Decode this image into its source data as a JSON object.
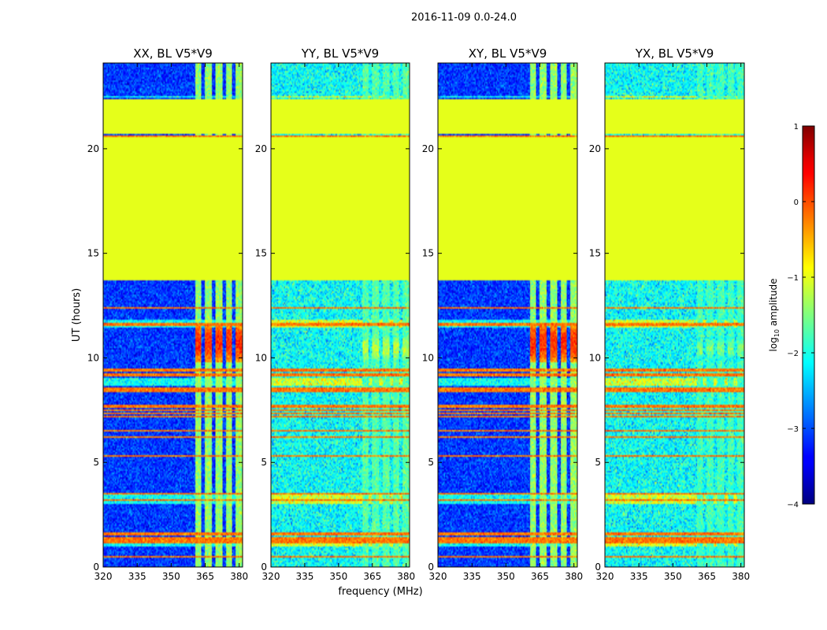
{
  "chart_data": {
    "type": "heatmap",
    "suptitle": "2016-11-09 0.0-24.0",
    "xlabel": "frequency (MHz)",
    "ylabel": "UT (hours)",
    "xlim": [
      320,
      381.5
    ],
    "ylim": [
      0,
      24.1
    ],
    "xticks": [
      320,
      335,
      350,
      365,
      380
    ],
    "xtick_labels": [
      "320",
      "335",
      "350",
      "365",
      "380"
    ],
    "yticks": [
      0,
      5,
      10,
      15,
      20
    ],
    "ytick_labels": [
      "0",
      "5",
      "10",
      "15",
      "20"
    ],
    "colormap": "jet",
    "colorbar": {
      "label_prefix": "log",
      "label_sub": "10",
      "label_suffix": " amplitude",
      "range": [
        -4,
        1
      ],
      "ticks": [
        1,
        0,
        -1,
        -2,
        -3,
        -4
      ],
      "tick_labels": [
        "1",
        "0",
        "−1",
        "−2",
        "−3",
        "−4"
      ]
    },
    "gap_value": -1.0,
    "data_gaps_hours": [
      [
        13.7,
        20.55
      ],
      [
        20.7,
        22.4
      ]
    ],
    "band_frequencies_mhz": [
      320,
      360.5,
      363.5,
      365,
      368,
      369.5,
      372.5,
      374,
      377,
      378.5,
      381.5
    ],
    "panels": [
      {
        "title": "XX, BL V5*V9",
        "background_level": -3.1,
        "noise_std": 0.35,
        "band_level": -1.4,
        "peak_level": 0.15,
        "peak_hours": [
          9.8,
          11.6
        ]
      },
      {
        "title": "YY, BL V5*V9",
        "background_level": -2.1,
        "noise_std": 0.45,
        "band_level": -1.7,
        "peak_level": -1.2,
        "peak_hours": [
          9.8,
          11.1
        ]
      },
      {
        "title": "XY, BL V5*V9",
        "background_level": -3.1,
        "noise_std": 0.35,
        "band_level": -1.4,
        "peak_level": 0.15,
        "peak_hours": [
          9.8,
          11.6
        ]
      },
      {
        "title": "YX, BL V5*V9",
        "background_level": -2.1,
        "noise_std": 0.45,
        "band_level": -1.8,
        "peak_level": -1.5,
        "peak_hours": [
          9.9,
          11.0
        ]
      }
    ],
    "rfi_lines_hours": [
      0.5,
      1.2,
      1.35,
      1.6,
      3.2,
      3.5,
      5.3,
      6.2,
      6.5,
      7.2,
      7.35,
      7.5,
      7.7,
      8.4,
      8.5,
      9.2,
      9.4,
      11.6,
      12.4,
      20.6
    ],
    "bright_rows_hours": [
      [
        1.0,
        1.4
      ],
      [
        3.1,
        3.5
      ],
      [
        8.7,
        9.0
      ],
      [
        11.5,
        11.8
      ],
      [
        22.5,
        22.5
      ]
    ]
  }
}
